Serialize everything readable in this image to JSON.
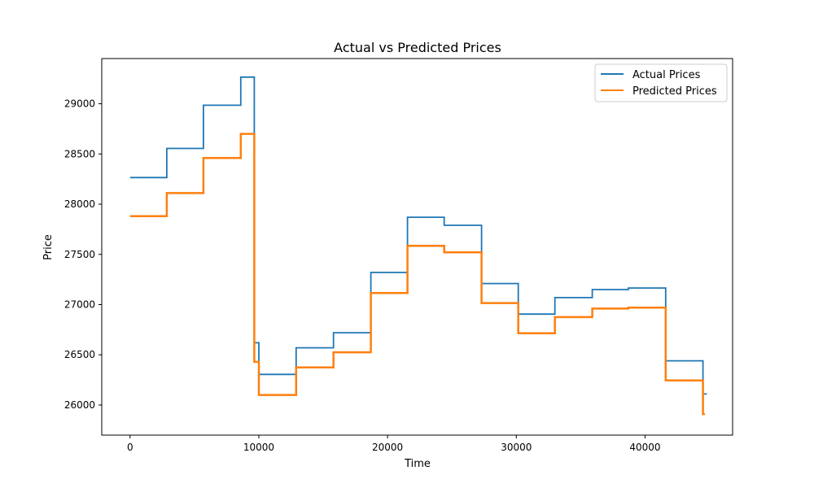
{
  "chart_data": {
    "type": "line",
    "title": "Actual vs Predicted Prices",
    "xlabel": "Time",
    "ylabel": "Price",
    "xlim": [
      -2200,
      46800
    ],
    "ylim": [
      25700,
      29450
    ],
    "x_ticks": [
      0,
      10000,
      20000,
      30000,
      40000
    ],
    "y_ticks": [
      26000,
      26500,
      27000,
      27500,
      28000,
      28500,
      29000
    ],
    "grid": false,
    "legend_position": "top-right",
    "series": [
      {
        "name": "Actual Prices",
        "color": "#1f77b4",
        "step_points": [
          [
            0,
            28265
          ],
          [
            2850,
            28265
          ],
          [
            2850,
            28555
          ],
          [
            5700,
            28555
          ],
          [
            5700,
            28985
          ],
          [
            8600,
            28985
          ],
          [
            8600,
            29265
          ],
          [
            9650,
            29265
          ],
          [
            9650,
            26620
          ],
          [
            10000,
            26620
          ],
          [
            10000,
            26305
          ],
          [
            12900,
            26305
          ],
          [
            12900,
            26570
          ],
          [
            15800,
            26570
          ],
          [
            15800,
            26720
          ],
          [
            18700,
            26720
          ],
          [
            18700,
            27320
          ],
          [
            21550,
            27320
          ],
          [
            21550,
            27870
          ],
          [
            24400,
            27870
          ],
          [
            24400,
            27790
          ],
          [
            27300,
            27790
          ],
          [
            27300,
            27210
          ],
          [
            30150,
            27210
          ],
          [
            30150,
            26905
          ],
          [
            33000,
            26905
          ],
          [
            33000,
            27070
          ],
          [
            35900,
            27070
          ],
          [
            35900,
            27150
          ],
          [
            38700,
            27150
          ],
          [
            38700,
            27165
          ],
          [
            41600,
            27165
          ],
          [
            41600,
            26440
          ],
          [
            44500,
            26440
          ],
          [
            44500,
            26110
          ],
          [
            44800,
            26110
          ]
        ]
      },
      {
        "name": "Predicted Prices",
        "color": "#ff7f0e",
        "step_points": [
          [
            0,
            27880
          ],
          [
            2850,
            27880
          ],
          [
            2850,
            28110
          ],
          [
            5700,
            28110
          ],
          [
            5700,
            28460
          ],
          [
            8600,
            28460
          ],
          [
            8600,
            28700
          ],
          [
            9650,
            28700
          ],
          [
            9650,
            26430
          ],
          [
            10000,
            26430
          ],
          [
            10000,
            26100
          ],
          [
            12900,
            26100
          ],
          [
            12900,
            26375
          ],
          [
            15800,
            26375
          ],
          [
            15800,
            26525
          ],
          [
            18700,
            26525
          ],
          [
            18700,
            27115
          ],
          [
            21550,
            27115
          ],
          [
            21550,
            27585
          ],
          [
            24400,
            27585
          ],
          [
            24400,
            27520
          ],
          [
            27300,
            27520
          ],
          [
            27300,
            27015
          ],
          [
            30150,
            27015
          ],
          [
            30150,
            26715
          ],
          [
            33000,
            26715
          ],
          [
            33000,
            26875
          ],
          [
            35900,
            26875
          ],
          [
            35900,
            26960
          ],
          [
            38700,
            26960
          ],
          [
            38700,
            26970
          ],
          [
            41600,
            26970
          ],
          [
            41600,
            26245
          ],
          [
            44500,
            26245
          ],
          [
            44500,
            25910
          ],
          [
            44650,
            25910
          ]
        ]
      }
    ]
  }
}
